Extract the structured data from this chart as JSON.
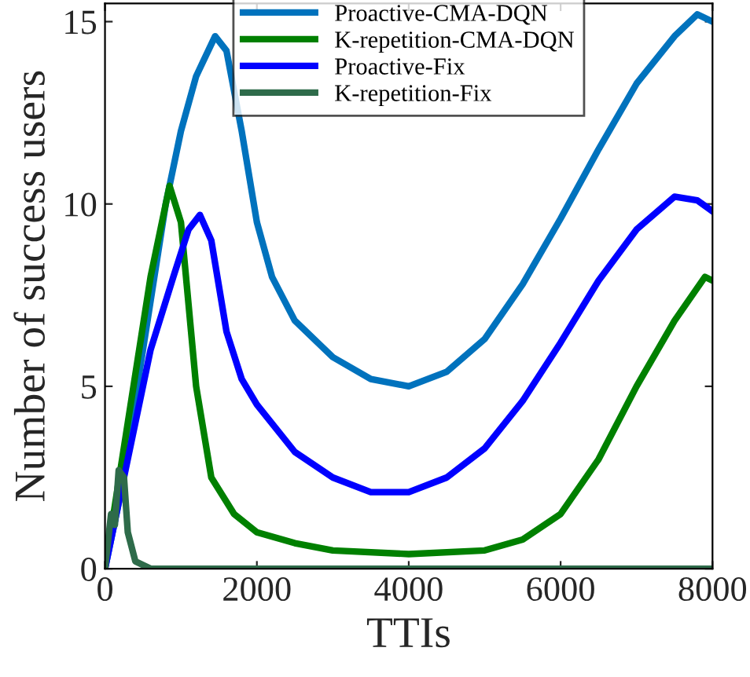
{
  "chart_data": {
    "type": "line",
    "xlabel": "TTIs",
    "ylabel": "Number of success users",
    "xlim": [
      0,
      8000
    ],
    "ylim": [
      0,
      15.5
    ],
    "xticks": [
      0,
      2000,
      4000,
      6000,
      8000
    ],
    "yticks": [
      0,
      5,
      10,
      15
    ],
    "grid": false,
    "legend": "top",
    "marker": "none",
    "line_style": "solid",
    "series": [
      {
        "name": "Proactive-CMA-DQN",
        "color": "#0072bd",
        "x": [
          0,
          200,
          500,
          800,
          1000,
          1200,
          1450,
          1600,
          1800,
          2000,
          2200,
          2500,
          3000,
          3500,
          4000,
          4500,
          5000,
          5500,
          6000,
          6500,
          7000,
          7500,
          7800,
          8000
        ],
        "values": [
          0,
          2,
          6,
          10,
          12,
          13.5,
          14.6,
          14.2,
          12,
          9.5,
          8,
          6.8,
          5.8,
          5.2,
          5.0,
          5.4,
          6.3,
          7.8,
          9.6,
          11.5,
          13.3,
          14.6,
          15.2,
          15.0
        ]
      },
      {
        "name": "K-repetition-CMA-DQN",
        "color": "#008000",
        "x": [
          0,
          300,
          600,
          850,
          1000,
          1200,
          1400,
          1700,
          2000,
          2500,
          3000,
          4000,
          5000,
          5500,
          6000,
          6500,
          7000,
          7500,
          7900,
          8000
        ],
        "values": [
          0,
          4,
          8,
          10.5,
          9.5,
          5,
          2.5,
          1.5,
          1.0,
          0.7,
          0.5,
          0.4,
          0.5,
          0.8,
          1.5,
          3.0,
          5,
          6.8,
          8.0,
          7.9
        ]
      },
      {
        "name": "Proactive-Fix",
        "color": "#0000ff",
        "x": [
          0,
          300,
          600,
          900,
          1100,
          1250,
          1400,
          1600,
          1800,
          2000,
          2500,
          3000,
          3500,
          4000,
          4500,
          5000,
          5500,
          6000,
          6500,
          7000,
          7500,
          7800,
          8000
        ],
        "values": [
          0,
          3,
          6,
          8,
          9.3,
          9.7,
          9,
          6.5,
          5.2,
          4.5,
          3.2,
          2.5,
          2.1,
          2.1,
          2.5,
          3.3,
          4.6,
          6.2,
          7.9,
          9.3,
          10.2,
          10.1,
          9.8
        ]
      },
      {
        "name": "K-repetition-Fix",
        "color": "#2e6b4a",
        "x": [
          0,
          80,
          130,
          180,
          250,
          300,
          400,
          600,
          8000
        ],
        "values": [
          0,
          1.5,
          1.2,
          2.7,
          2.5,
          1,
          0.2,
          0,
          0
        ]
      }
    ]
  }
}
